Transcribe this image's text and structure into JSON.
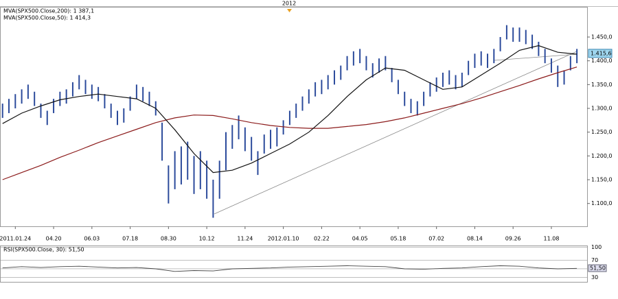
{
  "chart_data": [
    {
      "type": "ohlc",
      "top_label": "2012",
      "x": [
        1,
        2,
        3,
        4,
        5,
        6,
        7,
        8,
        9,
        10,
        11,
        12,
        13,
        14,
        15,
        16,
        17,
        18,
        19,
        20,
        21,
        22,
        23,
        24,
        25,
        26,
        27,
        28,
        29,
        30,
        31,
        32,
        33,
        34,
        35,
        36,
        37,
        38,
        39,
        40,
        41,
        42,
        43,
        44,
        45,
        46,
        47,
        48,
        49,
        50,
        51,
        52,
        53,
        54,
        55,
        56,
        57,
        58,
        59,
        60,
        61,
        62,
        63,
        64,
        65,
        66,
        67,
        68,
        69,
        70,
        71,
        72,
        73,
        74,
        75,
        76,
        77,
        78,
        79,
        80,
        81,
        82,
        83,
        84,
        85,
        86,
        87,
        88,
        89,
        90,
        91
      ],
      "high": [
        1310,
        1320,
        1330,
        1340,
        1350,
        1335,
        1310,
        1295,
        1320,
        1335,
        1340,
        1355,
        1370,
        1360,
        1350,
        1345,
        1330,
        1310,
        1295,
        1300,
        1325,
        1350,
        1345,
        1335,
        1315,
        1270,
        1180,
        1210,
        1220,
        1230,
        1200,
        1210,
        1190,
        1150,
        1190,
        1250,
        1265,
        1285,
        1260,
        1240,
        1210,
        1245,
        1255,
        1260,
        1275,
        1295,
        1310,
        1325,
        1340,
        1355,
        1360,
        1370,
        1380,
        1390,
        1410,
        1420,
        1425,
        1410,
        1395,
        1405,
        1410,
        1385,
        1360,
        1335,
        1320,
        1315,
        1335,
        1355,
        1365,
        1375,
        1380,
        1370,
        1375,
        1400,
        1415,
        1420,
        1415,
        1425,
        1450,
        1475,
        1470,
        1470,
        1465,
        1455,
        1440,
        1425,
        1405,
        1390,
        1380,
        1410,
        1425
      ],
      "low": [
        1280,
        1290,
        1300,
        1310,
        1320,
        1305,
        1280,
        1265,
        1290,
        1305,
        1310,
        1325,
        1340,
        1330,
        1320,
        1315,
        1300,
        1280,
        1265,
        1270,
        1295,
        1320,
        1315,
        1305,
        1285,
        1190,
        1100,
        1130,
        1140,
        1150,
        1120,
        1130,
        1110,
        1070,
        1110,
        1170,
        1215,
        1235,
        1210,
        1190,
        1160,
        1205,
        1215,
        1220,
        1245,
        1265,
        1280,
        1295,
        1310,
        1325,
        1330,
        1340,
        1350,
        1360,
        1380,
        1390,
        1395,
        1380,
        1365,
        1375,
        1380,
        1355,
        1330,
        1305,
        1290,
        1285,
        1305,
        1325,
        1335,
        1345,
        1350,
        1340,
        1345,
        1370,
        1385,
        1390,
        1385,
        1395,
        1420,
        1445,
        1440,
        1440,
        1435,
        1425,
        1410,
        1395,
        1375,
        1345,
        1350,
        1380,
        1395
      ],
      "color": "#2b4a9b",
      "xlim": [
        0.6,
        92.6
      ],
      "xticks": [
        {
          "value": 3,
          "label": "2011.01.24"
        },
        {
          "value": 9,
          "label": "04.20"
        },
        {
          "value": 15,
          "label": "06.03"
        },
        {
          "value": 21,
          "label": "07.18"
        },
        {
          "value": 27,
          "label": "08.30"
        },
        {
          "value": 33,
          "label": "10.12"
        },
        {
          "value": 39,
          "label": "11.24"
        },
        {
          "value": 45,
          "label": "2012.01.10"
        },
        {
          "value": 51,
          "label": "02.22"
        },
        {
          "value": 57,
          "label": "04.05"
        },
        {
          "value": 63,
          "label": "05.18"
        },
        {
          "value": 69,
          "label": "07.02"
        },
        {
          "value": 75,
          "label": "08.14"
        },
        {
          "value": 81,
          "label": "09.26"
        },
        {
          "value": 87,
          "label": "11.08"
        }
      ],
      "ylim": [
        1052,
        1512
      ],
      "yticks": [
        {
          "value": 1100,
          "label": "1.100,0"
        },
        {
          "value": 1150,
          "label": "1.150,0"
        },
        {
          "value": 1200,
          "label": "1.200,0"
        },
        {
          "value": 1250,
          "label": "1.250,0"
        },
        {
          "value": 1300,
          "label": "1.300,0"
        },
        {
          "value": 1350,
          "label": "1.350,0"
        },
        {
          "value": 1400,
          "label": "1.400,0"
        },
        {
          "value": 1450,
          "label": "1.450,0"
        }
      ],
      "last_price": {
        "value": 1415.6,
        "label": "1.415,6"
      },
      "lines": [
        {
          "name": "MVA(SPX500.Close,200): 1 387,1",
          "color": "#8b1a1a",
          "x": [
            1,
            4,
            7,
            10,
            13,
            16,
            19,
            22,
            25,
            28,
            31,
            34,
            37,
            40,
            43,
            46,
            49,
            52,
            55,
            58,
            61,
            64,
            67,
            70,
            73,
            76,
            79,
            82,
            85,
            88,
            91
          ],
          "values": [
            1150,
            1165,
            1180,
            1197,
            1212,
            1228,
            1242,
            1256,
            1270,
            1280,
            1286,
            1285,
            1278,
            1270,
            1264,
            1260,
            1258,
            1258,
            1262,
            1266,
            1272,
            1280,
            1290,
            1300,
            1310,
            1322,
            1335,
            1348,
            1362,
            1375,
            1387
          ]
        },
        {
          "name": "MVA(SPX500.Close,50): 1 414,3",
          "color": "#111111",
          "x": [
            1,
            4,
            7,
            10,
            13,
            16,
            19,
            22,
            25,
            28,
            31,
            34,
            37,
            40,
            43,
            46,
            49,
            52,
            55,
            58,
            61,
            64,
            67,
            70,
            73,
            76,
            79,
            82,
            85,
            88,
            91
          ],
          "values": [
            1268,
            1290,
            1305,
            1318,
            1325,
            1330,
            1325,
            1320,
            1300,
            1255,
            1205,
            1165,
            1170,
            1185,
            1205,
            1225,
            1250,
            1285,
            1325,
            1360,
            1385,
            1380,
            1360,
            1340,
            1345,
            1370,
            1395,
            1422,
            1432,
            1418,
            1414
          ]
        }
      ]
    },
    {
      "type": "line",
      "title": "RSI(SPX500.Close, 30): 51,50",
      "color": "#444444",
      "x": [
        1,
        4,
        7,
        10,
        13,
        16,
        19,
        22,
        25,
        28,
        31,
        34,
        37,
        40,
        43,
        46,
        49,
        52,
        55,
        58,
        61,
        64,
        67,
        70,
        73,
        76,
        79,
        82,
        85,
        88,
        91
      ],
      "values": [
        52,
        55,
        53,
        55,
        56,
        54,
        52,
        53,
        50,
        44,
        46,
        45,
        50,
        51,
        52,
        54,
        55,
        56,
        57,
        56,
        55,
        50,
        49,
        51,
        52,
        55,
        57,
        56,
        52,
        50,
        51
      ],
      "xlim": [
        0.6,
        92.6
      ],
      "ylim": [
        20,
        102
      ],
      "yticks": [
        100,
        70,
        50,
        30
      ],
      "last_value": {
        "value": 51.5,
        "label": "51,50"
      }
    }
  ]
}
